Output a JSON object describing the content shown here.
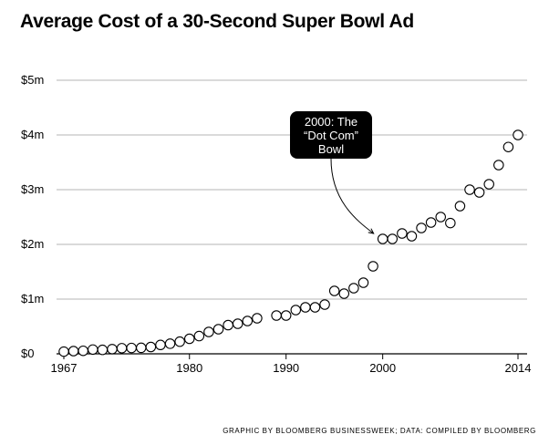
{
  "title": "Average Cost of a 30-Second Super Bowl Ad",
  "credit": "GRAPHIC BY BLOOMBERG BUSINESSWEEK; DATA: COMPILED BY BLOOMBERG",
  "annotation": {
    "lines": [
      "2000: The",
      "“Dot Com”",
      "Bowl"
    ],
    "points_to_year": 2000
  },
  "chart_data": {
    "type": "scatter",
    "title": "Average Cost of a 30-Second Super Bowl Ad",
    "xlabel": "",
    "ylabel": "",
    "xlim": [
      1967,
      2014
    ],
    "ylim": [
      0,
      5000000
    ],
    "x_ticks": [
      1967,
      1980,
      1990,
      2000,
      2014
    ],
    "y_ticks": [
      {
        "value": 0,
        "label": "$0"
      },
      {
        "value": 1000000,
        "label": "$1m"
      },
      {
        "value": 2000000,
        "label": "$2m"
      },
      {
        "value": 3000000,
        "label": "$3m"
      },
      {
        "value": 4000000,
        "label": "$4m"
      },
      {
        "value": 5000000,
        "label": "$5m"
      }
    ],
    "grid": "horizontal",
    "marker": "hollow-circle",
    "x": [
      1967,
      1968,
      1969,
      1970,
      1971,
      1972,
      1973,
      1974,
      1975,
      1976,
      1977,
      1978,
      1979,
      1980,
      1981,
      1982,
      1983,
      1984,
      1985,
      1986,
      1987,
      1989,
      1990,
      1991,
      1992,
      1993,
      1994,
      1995,
      1996,
      1997,
      1998,
      1999,
      2000,
      2001,
      2002,
      2003,
      2004,
      2005,
      2006,
      2007,
      2008,
      2009,
      2010,
      2011,
      2012,
      2013,
      2014
    ],
    "y": [
      40000,
      50000,
      55000,
      78000,
      72000,
      86000,
      103000,
      107000,
      110000,
      125000,
      162000,
      185000,
      222000,
      275000,
      324000,
      400000,
      450000,
      525000,
      550000,
      600000,
      650000,
      700000,
      700000,
      800000,
      850000,
      850000,
      900000,
      1150000,
      1100000,
      1200000,
      1300000,
      1600000,
      2100000,
      2100000,
      2200000,
      2150000,
      2300000,
      2400000,
      2500000,
      2390000,
      2700000,
      3000000,
      2950000,
      3100000,
      3450000,
      3780000,
      4000000
    ]
  }
}
